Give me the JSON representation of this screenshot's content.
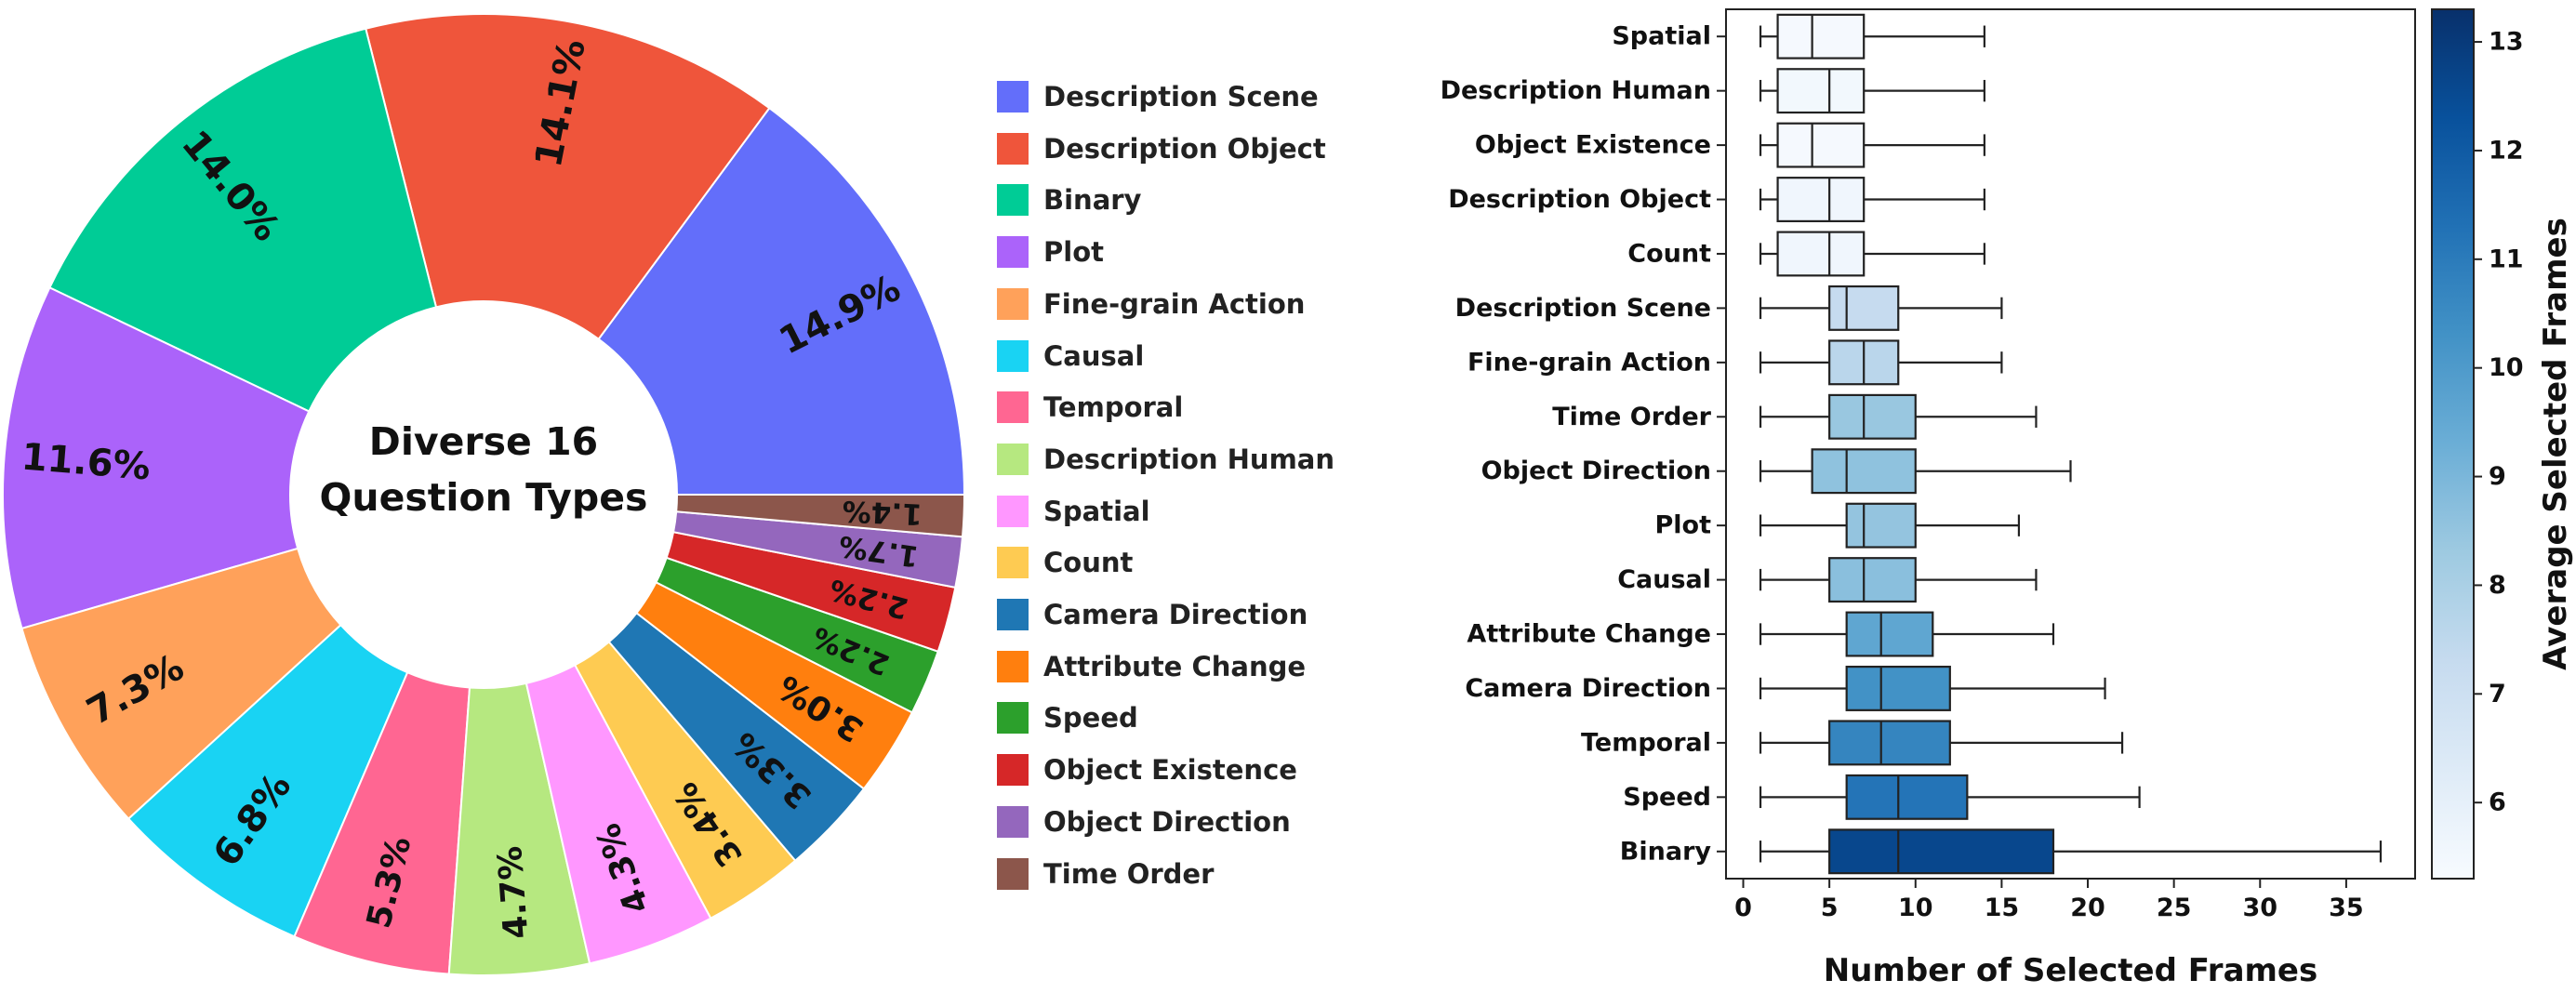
{
  "chart_data": [
    {
      "type": "pie",
      "center_title": [
        "Diverse 16",
        "Question Types"
      ],
      "slices": [
        {
          "label": "Description Scene",
          "value": 14.9,
          "display": "14.9%",
          "color": "#636EFA"
        },
        {
          "label": "Description Object",
          "value": 14.1,
          "display": "14.1%",
          "color": "#EF553B"
        },
        {
          "label": "Binary",
          "value": 14.0,
          "display": "14.0%",
          "color": "#00CC96"
        },
        {
          "label": "Plot",
          "value": 11.6,
          "display": "11.6%",
          "color": "#AB63FA"
        },
        {
          "label": "Fine-grain Action",
          "value": 7.3,
          "display": "7.3%",
          "color": "#FFA15A"
        },
        {
          "label": "Causal",
          "value": 6.8,
          "display": "6.8%",
          "color": "#19D3F3"
        },
        {
          "label": "Temporal",
          "value": 5.3,
          "display": "5.3%",
          "color": "#FF6692"
        },
        {
          "label": "Description Human",
          "value": 4.7,
          "display": "4.7%",
          "color": "#B6E880"
        },
        {
          "label": "Spatial",
          "value": 4.3,
          "display": "4.3%",
          "color": "#FF97FF"
        },
        {
          "label": "Count",
          "value": 3.4,
          "display": "3.4%",
          "color": "#FECB52"
        },
        {
          "label": "Camera Direction",
          "value": 3.3,
          "display": "3.3%",
          "color": "#1F77B4"
        },
        {
          "label": "Attribute Change",
          "value": 3.0,
          "display": "3.0%",
          "color": "#FF7F0E"
        },
        {
          "label": "Speed",
          "value": 2.2,
          "display": "2.2%",
          "color": "#2CA02C"
        },
        {
          "label": "Object Existence",
          "value": 2.2,
          "display": "2.2%",
          "color": "#D62728"
        },
        {
          "label": "Object Direction",
          "value": 1.7,
          "display": "1.7%",
          "color": "#9467BD"
        },
        {
          "label": "Time Order",
          "value": 1.4,
          "display": "1.4%",
          "color": "#8C564B"
        }
      ],
      "legend_placement": "right"
    },
    {
      "type": "box",
      "orientation": "horizontal",
      "xlabel": "Number of Selected Frames",
      "xlim": [
        -1,
        39
      ],
      "xticks": [
        0,
        5,
        10,
        15,
        20,
        25,
        30,
        35
      ],
      "colorbar_label": "Average Selected Frames",
      "colorbar_range": [
        5.3,
        13.3
      ],
      "colorbar_ticks": [
        6,
        7,
        8,
        9,
        10,
        11,
        12,
        13
      ],
      "grid": false,
      "boxes": [
        {
          "category": "Spatial",
          "whislo": 1,
          "q1": 2,
          "med": 4,
          "q3": 7,
          "whishi": 14,
          "mean": 5.4
        },
        {
          "category": "Description Human",
          "whislo": 1,
          "q1": 2,
          "med": 5,
          "q3": 7,
          "whishi": 14,
          "mean": 5.5
        },
        {
          "category": "Object Existence",
          "whislo": 1,
          "q1": 2,
          "med": 4,
          "q3": 7,
          "whishi": 14,
          "mean": 5.4
        },
        {
          "category": "Description Object",
          "whislo": 1,
          "q1": 2,
          "med": 5,
          "q3": 7,
          "whishi": 14,
          "mean": 5.6
        },
        {
          "category": "Count",
          "whislo": 1,
          "q1": 2,
          "med": 5,
          "q3": 7,
          "whishi": 14,
          "mean": 5.6
        },
        {
          "category": "Description Scene",
          "whislo": 1,
          "q1": 5,
          "med": 6,
          "q3": 9,
          "whishi": 15,
          "mean": 7.3
        },
        {
          "category": "Fine-grain Action",
          "whislo": 1,
          "q1": 5,
          "med": 7,
          "q3": 9,
          "whishi": 15,
          "mean": 7.6
        },
        {
          "category": "Time Order",
          "whislo": 1,
          "q1": 5,
          "med": 7,
          "q3": 10,
          "whishi": 17,
          "mean": 8.4
        },
        {
          "category": "Object Direction",
          "whislo": 1,
          "q1": 4,
          "med": 6,
          "q3": 10,
          "whishi": 19,
          "mean": 8.6
        },
        {
          "category": "Plot",
          "whislo": 1,
          "q1": 6,
          "med": 7,
          "q3": 10,
          "whishi": 16,
          "mean": 8.5
        },
        {
          "category": "Causal",
          "whislo": 1,
          "q1": 5,
          "med": 7,
          "q3": 10,
          "whishi": 17,
          "mean": 8.7
        },
        {
          "category": "Attribute Change",
          "whislo": 1,
          "q1": 6,
          "med": 8,
          "q3": 11,
          "whishi": 18,
          "mean": 9.6
        },
        {
          "category": "Camera Direction",
          "whislo": 1,
          "q1": 6,
          "med": 8,
          "q3": 12,
          "whishi": 21,
          "mean": 10.3
        },
        {
          "category": "Temporal",
          "whislo": 1,
          "q1": 5,
          "med": 8,
          "q3": 12,
          "whishi": 22,
          "mean": 10.7
        },
        {
          "category": "Speed",
          "whislo": 1,
          "q1": 6,
          "med": 9,
          "q3": 13,
          "whishi": 23,
          "mean": 11.2
        },
        {
          "category": "Binary",
          "whislo": 1,
          "q1": 5,
          "med": 9,
          "q3": 18,
          "whishi": 37,
          "mean": 12.6
        }
      ]
    }
  ]
}
